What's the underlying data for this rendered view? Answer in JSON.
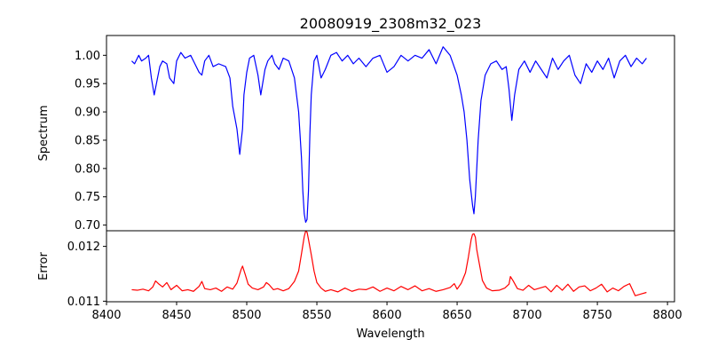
{
  "chart_data": [
    {
      "type": "line",
      "panel": "top",
      "title": "20080919_2308m32_023",
      "xlabel": "",
      "ylabel": "Spectrum",
      "xlim": [
        8400,
        8805
      ],
      "ylim": [
        0.69,
        1.035
      ],
      "yticks": [
        0.7,
        0.75,
        0.8,
        0.85,
        0.9,
        0.95,
        1.0
      ],
      "ytick_labels": [
        "0.70",
        "0.75",
        "0.80",
        "0.85",
        "0.90",
        "0.95",
        "1.00"
      ],
      "grid": false,
      "series": [
        {
          "name": "Spectrum",
          "color": "#0000ff",
          "x": [
            8418,
            8420,
            8423,
            8425,
            8428,
            8430,
            8432,
            8434,
            8436,
            8438,
            8440,
            8443,
            8445,
            8448,
            8450,
            8453,
            8456,
            8460,
            8463,
            8466,
            8468,
            8470,
            8473,
            8476,
            8480,
            8485,
            8488,
            8490,
            8493,
            8495,
            8497,
            8498,
            8500,
            8502,
            8505,
            8508,
            8510,
            8513,
            8515,
            8518,
            8520,
            8523,
            8526,
            8530,
            8534,
            8537,
            8539,
            8540,
            8541,
            8542,
            8543,
            8544,
            8545,
            8546,
            8548,
            8550,
            8553,
            8556,
            8560,
            8564,
            8568,
            8572,
            8576,
            8580,
            8585,
            8590,
            8595,
            8600,
            8605,
            8610,
            8615,
            8620,
            8625,
            8630,
            8635,
            8640,
            8645,
            8650,
            8653,
            8655,
            8657,
            8659,
            8661,
            8662,
            8663,
            8665,
            8667,
            8670,
            8674,
            8678,
            8682,
            8685,
            8687,
            8689,
            8691,
            8694,
            8698,
            8702,
            8706,
            8710,
            8714,
            8718,
            8722,
            8726,
            8730,
            8734,
            8738,
            8742,
            8746,
            8750,
            8754,
            8758,
            8762,
            8766,
            8770,
            8774,
            8778,
            8782,
            8785
          ],
          "y": [
            0.99,
            0.985,
            1.0,
            0.99,
            0.995,
            1.0,
            0.96,
            0.93,
            0.955,
            0.98,
            0.99,
            0.985,
            0.96,
            0.95,
            0.99,
            1.005,
            0.995,
            1.0,
            0.985,
            0.97,
            0.965,
            0.99,
            1.0,
            0.98,
            0.985,
            0.98,
            0.96,
            0.91,
            0.87,
            0.825,
            0.87,
            0.93,
            0.97,
            0.995,
            1.0,
            0.965,
            0.93,
            0.975,
            0.99,
            1.0,
            0.985,
            0.975,
            0.995,
            0.99,
            0.96,
            0.9,
            0.82,
            0.76,
            0.72,
            0.705,
            0.71,
            0.76,
            0.86,
            0.93,
            0.99,
            1.0,
            0.96,
            0.975,
            1.0,
            1.005,
            0.99,
            1.0,
            0.985,
            0.995,
            0.98,
            0.995,
            1.0,
            0.97,
            0.98,
            1.0,
            0.99,
            1.0,
            0.995,
            1.01,
            0.985,
            1.015,
            1.0,
            0.965,
            0.93,
            0.9,
            0.85,
            0.78,
            0.735,
            0.72,
            0.75,
            0.85,
            0.92,
            0.965,
            0.985,
            0.99,
            0.975,
            0.98,
            0.94,
            0.885,
            0.93,
            0.975,
            0.99,
            0.97,
            0.99,
            0.975,
            0.96,
            0.995,
            0.975,
            0.99,
            1.0,
            0.965,
            0.95,
            0.985,
            0.97,
            0.99,
            0.975,
            0.995,
            0.96,
            0.99,
            1.0,
            0.98,
            0.995,
            0.985,
            0.995
          ]
        }
      ]
    },
    {
      "type": "line",
      "panel": "bottom",
      "title": "",
      "xlabel": "Wavelength",
      "ylabel": "Error",
      "xlim": [
        8400,
        8805
      ],
      "ylim": [
        0.01099,
        0.012285
      ],
      "xticks": [
        8400,
        8450,
        8500,
        8550,
        8600,
        8650,
        8700,
        8750,
        8800
      ],
      "xtick_labels": [
        "8400",
        "8450",
        "8500",
        "8550",
        "8600",
        "8650",
        "8700",
        "8750",
        "8800"
      ],
      "yticks": [
        0.011,
        0.012
      ],
      "ytick_labels": [
        "0.011",
        "0.012"
      ],
      "grid": false,
      "series": [
        {
          "name": "Error",
          "color": "#ff0000",
          "x": [
            8418,
            8422,
            8426,
            8430,
            8433,
            8435,
            8437,
            8440,
            8443,
            8446,
            8450,
            8454,
            8458,
            8462,
            8466,
            8468,
            8470,
            8474,
            8478,
            8482,
            8486,
            8490,
            8493,
            8496,
            8497,
            8499,
            8501,
            8504,
            8508,
            8512,
            8514,
            8516,
            8519,
            8522,
            8526,
            8530,
            8534,
            8537,
            8539,
            8541,
            8542,
            8543,
            8544,
            8546,
            8548,
            8550,
            8553,
            8556,
            8560,
            8565,
            8570,
            8575,
            8580,
            8585,
            8590,
            8595,
            8600,
            8605,
            8610,
            8615,
            8620,
            8625,
            8630,
            8635,
            8640,
            8645,
            8648,
            8650,
            8653,
            8656,
            8658,
            8660,
            8661,
            8662,
            8663,
            8664,
            8666,
            8668,
            8671,
            8675,
            8680,
            8684,
            8687,
            8688,
            8690,
            8693,
            8697,
            8701,
            8705,
            8709,
            8713,
            8717,
            8721,
            8725,
            8729,
            8733,
            8737,
            8741,
            8745,
            8749,
            8753,
            8757,
            8761,
            8765,
            8769,
            8773,
            8777,
            8781,
            8785
          ],
          "y": [
            0.01121,
            0.0112,
            0.01122,
            0.01119,
            0.01126,
            0.01137,
            0.01132,
            0.01126,
            0.01134,
            0.01121,
            0.01129,
            0.01119,
            0.01121,
            0.01118,
            0.01127,
            0.01136,
            0.01123,
            0.01121,
            0.01124,
            0.01118,
            0.01126,
            0.01122,
            0.01133,
            0.01158,
            0.01164,
            0.01148,
            0.01131,
            0.01124,
            0.01121,
            0.01126,
            0.01134,
            0.0113,
            0.01121,
            0.01123,
            0.01119,
            0.01123,
            0.01136,
            0.01155,
            0.01186,
            0.01218,
            0.01228,
            0.01226,
            0.01213,
            0.01185,
            0.01155,
            0.01134,
            0.01124,
            0.01118,
            0.01121,
            0.01117,
            0.01124,
            0.01118,
            0.01122,
            0.01121,
            0.01126,
            0.01118,
            0.01124,
            0.01119,
            0.01127,
            0.01121,
            0.01128,
            0.01119,
            0.01123,
            0.01118,
            0.01121,
            0.01125,
            0.01132,
            0.01122,
            0.01133,
            0.01152,
            0.0118,
            0.01212,
            0.01222,
            0.01223,
            0.01217,
            0.01194,
            0.01166,
            0.01138,
            0.01124,
            0.01119,
            0.0112,
            0.01124,
            0.01131,
            0.01145,
            0.01137,
            0.01123,
            0.0112,
            0.01129,
            0.01121,
            0.01124,
            0.01127,
            0.01117,
            0.01129,
            0.0112,
            0.01131,
            0.01118,
            0.01126,
            0.01128,
            0.01119,
            0.01124,
            0.01131,
            0.01117,
            0.01124,
            0.01119,
            0.01127,
            0.01132,
            0.0111,
            0.01113,
            0.01116
          ]
        }
      ]
    }
  ]
}
